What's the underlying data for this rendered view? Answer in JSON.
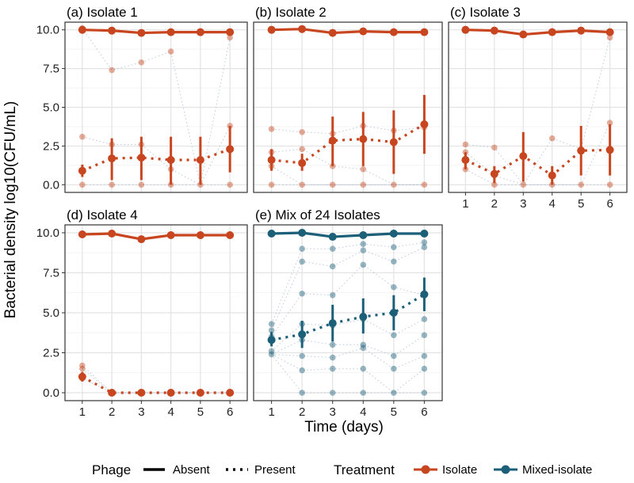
{
  "chart_data": {
    "type": "line",
    "xlabel": "Time (days)",
    "ylabel": "Bacterial density log10(CFU/mL)",
    "x": [
      1,
      2,
      3,
      4,
      5,
      6
    ],
    "ylim": [
      0,
      10
    ],
    "yticks": [
      0.0,
      2.5,
      5.0,
      7.5,
      10.0
    ],
    "ytick_labels": [
      "0.0",
      "2.5",
      "5.0",
      "7.5",
      "10.0"
    ],
    "xticks": [
      1,
      2,
      3,
      4,
      5,
      6
    ],
    "xtick_labels": [
      "1",
      "2",
      "3",
      "4",
      "5",
      "6"
    ],
    "colors": {
      "Isolate": "#c8461f",
      "Mixed-isolate": "#1c5f78"
    },
    "legend": {
      "phage_title": "Phage",
      "phage_absent": "Absent",
      "phage_present": "Present",
      "treatment_title": "Treatment",
      "treatment_isolate": "Isolate",
      "treatment_mixed": "Mixed-isolate"
    },
    "panels": [
      {
        "title": "(a) Isolate 1",
        "treatment": "Isolate",
        "absent_mean": [
          10.0,
          9.95,
          9.8,
          9.85,
          9.85,
          9.85
        ],
        "present_mean": [
          0.9,
          1.7,
          1.75,
          1.6,
          1.6,
          2.3
        ],
        "present_err": [
          [
            0.5,
            1.3
          ],
          [
            0.3,
            3.0
          ],
          [
            0.3,
            3.1
          ],
          [
            0.0,
            3.1
          ],
          [
            0.0,
            3.1
          ],
          [
            0.8,
            3.8
          ]
        ],
        "raw_points": [
          [
            1,
            10.1
          ],
          [
            1,
            3.1
          ],
          [
            1,
            0.0
          ],
          [
            2,
            7.4
          ],
          [
            2,
            2.6
          ],
          [
            2,
            0.0
          ],
          [
            3,
            7.9
          ],
          [
            3,
            2.6
          ],
          [
            3,
            0.0
          ],
          [
            4,
            8.6
          ],
          [
            4,
            1.0
          ],
          [
            4,
            0.0
          ],
          [
            5,
            0.0
          ],
          [
            6,
            9.5
          ],
          [
            6,
            3.8
          ],
          [
            6,
            0.0
          ]
        ]
      },
      {
        "title": "(b) Isolate 2",
        "treatment": "Isolate",
        "absent_mean": [
          10.0,
          10.05,
          9.8,
          9.9,
          9.85,
          9.85
        ],
        "present_mean": [
          1.6,
          1.4,
          2.85,
          2.95,
          2.75,
          3.9
        ],
        "present_err": [
          [
            0.9,
            2.3
          ],
          [
            0.9,
            2.0
          ],
          [
            1.2,
            4.4
          ],
          [
            1.2,
            4.7
          ],
          [
            0.7,
            4.8
          ],
          [
            2.0,
            5.8
          ]
        ],
        "raw_points": [
          [
            1,
            3.6
          ],
          [
            1,
            2.1
          ],
          [
            1,
            1.2
          ],
          [
            1,
            0.0
          ],
          [
            2,
            3.4
          ],
          [
            2,
            2.3
          ],
          [
            2,
            0.0
          ],
          [
            3,
            3.3
          ],
          [
            3,
            1.2
          ],
          [
            3,
            0.0
          ],
          [
            4,
            3.8
          ],
          [
            4,
            1.0
          ],
          [
            4,
            0.0
          ],
          [
            5,
            3.5
          ],
          [
            5,
            0.0
          ],
          [
            6,
            3.7
          ],
          [
            6,
            0.0
          ]
        ]
      },
      {
        "title": "(c) Isolate 3",
        "treatment": "Isolate",
        "absent_mean": [
          10.0,
          9.95,
          9.7,
          9.85,
          9.95,
          9.85
        ],
        "present_mean": [
          1.6,
          0.7,
          1.85,
          0.6,
          2.2,
          2.25
        ],
        "present_err": [
          [
            1.0,
            2.1
          ],
          [
            0.1,
            1.2
          ],
          [
            0.2,
            3.4
          ],
          [
            0.0,
            1.2
          ],
          [
            0.6,
            3.8
          ],
          [
            0.6,
            3.9
          ]
        ],
        "raw_points": [
          [
            1,
            2.6
          ],
          [
            1,
            2.1
          ],
          [
            1,
            1.0
          ],
          [
            2,
            2.4
          ],
          [
            2,
            0.6
          ],
          [
            2,
            0.0
          ],
          [
            3,
            0.0
          ],
          [
            4,
            3.0
          ],
          [
            4,
            0.0
          ],
          [
            5,
            2.3
          ],
          [
            5,
            0.0
          ],
          [
            6,
            4.0
          ],
          [
            6,
            9.5
          ],
          [
            6,
            0.0
          ]
        ]
      },
      {
        "title": "(d) Isolate 4",
        "treatment": "Isolate",
        "absent_mean": [
          9.9,
          9.95,
          9.6,
          9.85,
          9.85,
          9.85
        ],
        "present_mean": [
          1.0,
          0.0,
          0.0,
          0.0,
          0.0,
          0.0
        ],
        "present_err": [
          [
            0.7,
            1.3
          ],
          [
            0.0,
            0.0
          ],
          [
            0.0,
            0.0
          ],
          [
            0.0,
            0.0
          ],
          [
            0.0,
            0.0
          ],
          [
            0.0,
            0.0
          ]
        ],
        "raw_points": [
          [
            1,
            1.7
          ],
          [
            1,
            1.5
          ],
          [
            1,
            0.9
          ],
          [
            2,
            0.0
          ],
          [
            3,
            0.0
          ],
          [
            4,
            0.0
          ],
          [
            5,
            0.0
          ],
          [
            6,
            0.0
          ]
        ]
      },
      {
        "title": "(e) Mix of 24 Isolates",
        "treatment": "Mixed-isolate",
        "absent_mean": [
          9.95,
          10.0,
          9.75,
          9.85,
          9.95,
          9.95
        ],
        "present_mean": [
          3.3,
          3.65,
          4.35,
          4.75,
          5.0,
          6.15
        ],
        "present_err": [
          [
            2.9,
            3.8
          ],
          [
            2.8,
            4.5
          ],
          [
            3.2,
            5.5
          ],
          [
            3.7,
            5.9
          ],
          [
            3.9,
            6.1
          ],
          [
            5.1,
            7.2
          ]
        ],
        "raw_points": [
          [
            1,
            4.3
          ],
          [
            1,
            3.9
          ],
          [
            1,
            3.5
          ],
          [
            1,
            2.6
          ],
          [
            1,
            2.4
          ],
          [
            2,
            9.0
          ],
          [
            2,
            8.2
          ],
          [
            2,
            6.2
          ],
          [
            2,
            4.3
          ],
          [
            2,
            3.3
          ],
          [
            2,
            2.3
          ],
          [
            2,
            1.4
          ],
          [
            2,
            0.0
          ],
          [
            3,
            9.0
          ],
          [
            3,
            7.9
          ],
          [
            3,
            6.1
          ],
          [
            3,
            4.2
          ],
          [
            3,
            3.0
          ],
          [
            3,
            2.2
          ],
          [
            3,
            1.5
          ],
          [
            3,
            0.0
          ],
          [
            4,
            9.3
          ],
          [
            4,
            8.9
          ],
          [
            4,
            8.0
          ],
          [
            4,
            4.6
          ],
          [
            4,
            3.0
          ],
          [
            4,
            2.8
          ],
          [
            4,
            1.5
          ],
          [
            4,
            0.0
          ],
          [
            5,
            9.1
          ],
          [
            5,
            8.2
          ],
          [
            5,
            6.6
          ],
          [
            5,
            3.6
          ],
          [
            5,
            2.3
          ],
          [
            5,
            1.5
          ],
          [
            5,
            0.0
          ],
          [
            6,
            9.4
          ],
          [
            6,
            9.1
          ],
          [
            6,
            6.1
          ],
          [
            6,
            4.6
          ],
          [
            6,
            3.6
          ],
          [
            6,
            2.3
          ],
          [
            6,
            1.5
          ],
          [
            6,
            0.0
          ]
        ]
      }
    ]
  }
}
